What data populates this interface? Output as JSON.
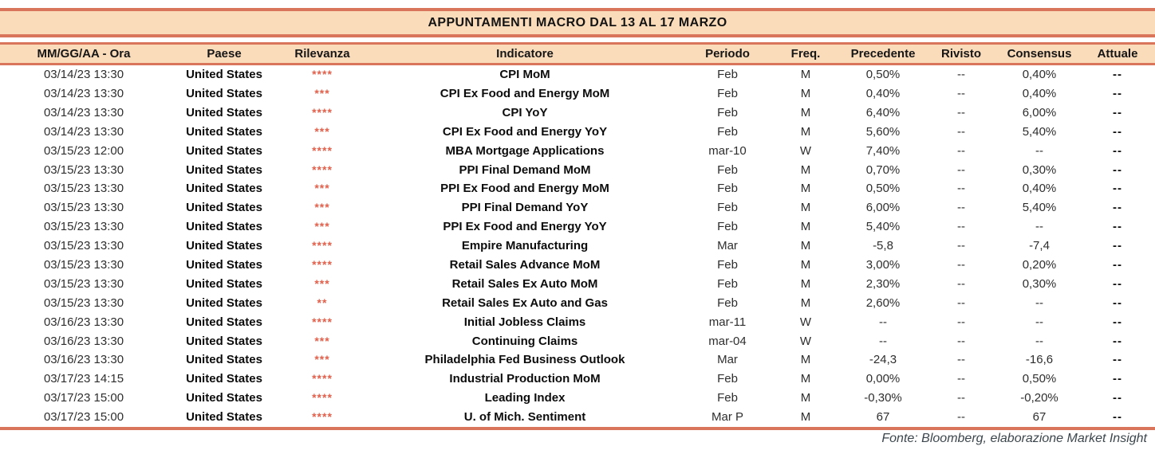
{
  "title": "APPUNTAMENTI MACRO DAL 13 AL 17 MARZO",
  "columns": [
    "MM/GG/AA - Ora",
    "Paese",
    "Rilevanza",
    "Indicatore",
    "Periodo",
    "Freq.",
    "Precedente",
    "Rivisto",
    "Consensus",
    "Attuale"
  ],
  "rows": [
    [
      "03/14/23 13:30",
      "United States",
      "****",
      "CPI MoM",
      "Feb",
      "M",
      "0,50%",
      "--",
      "0,40%",
      "--"
    ],
    [
      "03/14/23 13:30",
      "United States",
      "***",
      "CPI Ex Food and Energy MoM",
      "Feb",
      "M",
      "0,40%",
      "--",
      "0,40%",
      "--"
    ],
    [
      "03/14/23 13:30",
      "United States",
      "****",
      "CPI YoY",
      "Feb",
      "M",
      "6,40%",
      "--",
      "6,00%",
      "--"
    ],
    [
      "03/14/23 13:30",
      "United States",
      "***",
      "CPI Ex Food and Energy YoY",
      "Feb",
      "M",
      "5,60%",
      "--",
      "5,40%",
      "--"
    ],
    [
      "03/15/23 12:00",
      "United States",
      "****",
      "MBA Mortgage Applications",
      "mar-10",
      "W",
      "7,40%",
      "--",
      "--",
      "--"
    ],
    [
      "03/15/23 13:30",
      "United States",
      "****",
      "PPI Final Demand MoM",
      "Feb",
      "M",
      "0,70%",
      "--",
      "0,30%",
      "--"
    ],
    [
      "03/15/23 13:30",
      "United States",
      "***",
      "PPI Ex Food and Energy MoM",
      "Feb",
      "M",
      "0,50%",
      "--",
      "0,40%",
      "--"
    ],
    [
      "03/15/23 13:30",
      "United States",
      "***",
      "PPI Final Demand YoY",
      "Feb",
      "M",
      "6,00%",
      "--",
      "5,40%",
      "--"
    ],
    [
      "03/15/23 13:30",
      "United States",
      "***",
      "PPI Ex Food and Energy YoY",
      "Feb",
      "M",
      "5,40%",
      "--",
      "--",
      "--"
    ],
    [
      "03/15/23 13:30",
      "United States",
      "****",
      "Empire Manufacturing",
      "Mar",
      "M",
      "-5,8",
      "--",
      "-7,4",
      "--"
    ],
    [
      "03/15/23 13:30",
      "United States",
      "****",
      "Retail Sales Advance MoM",
      "Feb",
      "M",
      "3,00%",
      "--",
      "0,20%",
      "--"
    ],
    [
      "03/15/23 13:30",
      "United States",
      "***",
      "Retail Sales Ex Auto MoM",
      "Feb",
      "M",
      "2,30%",
      "--",
      "0,30%",
      "--"
    ],
    [
      "03/15/23 13:30",
      "United States",
      "**",
      "Retail Sales Ex Auto and Gas",
      "Feb",
      "M",
      "2,60%",
      "--",
      "--",
      "--"
    ],
    [
      "03/16/23 13:30",
      "United States",
      "****",
      "Initial Jobless Claims",
      "mar-11",
      "W",
      "--",
      "--",
      "--",
      "--"
    ],
    [
      "03/16/23 13:30",
      "United States",
      "***",
      "Continuing Claims",
      "mar-04",
      "W",
      "--",
      "--",
      "--",
      "--"
    ],
    [
      "03/16/23 13:30",
      "United States",
      "***",
      "Philadelphia Fed Business Outlook",
      "Mar",
      "M",
      "-24,3",
      "--",
      "-16,6",
      "--"
    ],
    [
      "03/17/23 14:15",
      "United States",
      "****",
      "Industrial Production MoM",
      "Feb",
      "M",
      "0,00%",
      "--",
      "0,50%",
      "--"
    ],
    [
      "03/17/23 15:00",
      "United States",
      "****",
      "Leading Index",
      "Feb",
      "M",
      "-0,30%",
      "--",
      "-0,20%",
      "--"
    ],
    [
      "03/17/23 15:00",
      "United States",
      "****",
      "U. of Mich. Sentiment",
      "Mar P",
      "M",
      "67",
      "--",
      "67",
      "--"
    ]
  ],
  "footer": "Fonte: Bloomberg, elaborazione Market Insight",
  "colors": {
    "band_background": "#fbdcba",
    "band_border": "#d9755b",
    "relevance_stars": "#e2604b",
    "text": "#2e2e2e",
    "footer_text": "#3c464c"
  }
}
